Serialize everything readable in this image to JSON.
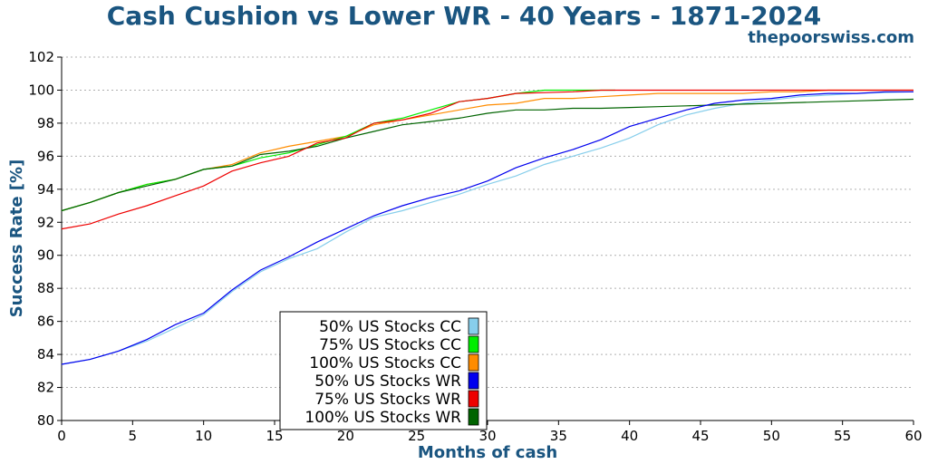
{
  "chart_data": {
    "type": "line",
    "title": "Cash Cushion vs Lower WR - 40 Years - 1871-2024",
    "watermark": "thepoorswiss.com",
    "xlabel": "Months of cash",
    "ylabel": "Success Rate [%]",
    "xlim": [
      0,
      60
    ],
    "ylim": [
      80,
      102
    ],
    "xticks": [
      0,
      5,
      10,
      15,
      20,
      25,
      30,
      35,
      40,
      45,
      50,
      55,
      60
    ],
    "yticks": [
      80,
      82,
      84,
      86,
      88,
      90,
      92,
      94,
      96,
      98,
      100,
      102
    ],
    "grid": "horizontal dotted",
    "legend_position": "lower-center",
    "series": [
      {
        "name": "50% US Stocks CC",
        "color": "#87ceeb",
        "x": [
          0,
          2,
          4,
          6,
          8,
          10,
          12,
          14,
          16,
          18,
          20,
          22,
          24,
          26,
          28,
          30,
          32,
          34,
          36,
          38,
          40,
          42,
          44,
          46,
          48,
          50,
          52,
          54,
          56,
          58,
          60
        ],
        "y": [
          83.4,
          83.7,
          84.2,
          84.8,
          85.6,
          86.4,
          87.8,
          89.0,
          89.8,
          90.4,
          91.4,
          92.3,
          92.7,
          93.2,
          93.7,
          94.3,
          94.8,
          95.5,
          96.0,
          96.5,
          97.1,
          97.9,
          98.5,
          98.9,
          99.2,
          99.4,
          99.6,
          99.7,
          99.8,
          99.85,
          99.9
        ]
      },
      {
        "name": "75% US Stocks CC",
        "color": "#00ee00",
        "x": [
          0,
          2,
          4,
          6,
          8,
          10,
          12,
          14,
          16,
          18,
          20,
          22,
          24,
          26,
          28,
          30,
          32,
          34,
          36,
          38,
          39
        ],
        "y": [
          92.7,
          93.2,
          93.8,
          94.3,
          94.6,
          95.2,
          95.4,
          95.9,
          96.2,
          96.7,
          97.2,
          98.0,
          98.3,
          98.8,
          99.3,
          99.5,
          99.8,
          100.0,
          100.0,
          100.0,
          100.0
        ]
      },
      {
        "name": "100% US Stocks CC",
        "color": "#ff8c00",
        "x": [
          0,
          2,
          4,
          6,
          8,
          10,
          12,
          14,
          16,
          18,
          20,
          22,
          24,
          26,
          28,
          30,
          32,
          34,
          36,
          38,
          40,
          42,
          44,
          46,
          48,
          50,
          52,
          54,
          56,
          58,
          60
        ],
        "y": [
          92.7,
          93.2,
          93.8,
          94.3,
          94.6,
          95.2,
          95.5,
          96.2,
          96.6,
          96.9,
          97.2,
          97.9,
          98.2,
          98.5,
          98.8,
          99.1,
          99.2,
          99.5,
          99.5,
          99.6,
          99.7,
          99.8,
          99.8,
          99.8,
          99.8,
          99.9,
          99.9,
          100.0,
          100.0,
          100.0,
          100.0
        ]
      },
      {
        "name": "50% US Stocks WR",
        "color": "#0000ee",
        "x": [
          0,
          2,
          4,
          6,
          8,
          10,
          12,
          14,
          16,
          18,
          20,
          22,
          24,
          26,
          28,
          30,
          32,
          34,
          36,
          38,
          40,
          42,
          44,
          46,
          48,
          50,
          52,
          54,
          56,
          58,
          60
        ],
        "y": [
          83.4,
          83.7,
          84.2,
          84.9,
          85.8,
          86.5,
          87.9,
          89.1,
          89.9,
          90.8,
          91.6,
          92.4,
          93.0,
          93.5,
          93.9,
          94.5,
          95.3,
          95.9,
          96.4,
          97.0,
          97.8,
          98.3,
          98.8,
          99.2,
          99.4,
          99.5,
          99.7,
          99.8,
          99.8,
          99.9,
          99.9
        ]
      },
      {
        "name": "75% US Stocks WR",
        "color": "#ee0000",
        "x": [
          0,
          2,
          4,
          6,
          8,
          10,
          12,
          14,
          16,
          18,
          20,
          22,
          24,
          26,
          28,
          30,
          32,
          34,
          36,
          38,
          40,
          42,
          44,
          46,
          48,
          50,
          52,
          54,
          56,
          58,
          60
        ],
        "y": [
          91.6,
          91.9,
          92.5,
          93.0,
          93.6,
          94.2,
          95.1,
          95.6,
          96.0,
          96.8,
          97.1,
          98.0,
          98.2,
          98.6,
          99.3,
          99.5,
          99.8,
          99.85,
          99.9,
          100.0,
          100.0,
          100.0,
          100.0,
          100.0,
          100.0,
          100.0,
          100.0,
          100.0,
          100.0,
          100.0,
          100.0
        ]
      },
      {
        "name": "100% US Stocks WR",
        "color": "#006400",
        "x": [
          0,
          2,
          4,
          6,
          8,
          10,
          12,
          14,
          16,
          18,
          20,
          22,
          24,
          26,
          28,
          30,
          32,
          34,
          36,
          38,
          40,
          42,
          44,
          46,
          48,
          50,
          52,
          54,
          56,
          58,
          60
        ],
        "y": [
          92.7,
          93.2,
          93.8,
          94.2,
          94.6,
          95.2,
          95.4,
          96.1,
          96.3,
          96.6,
          97.1,
          97.5,
          97.9,
          98.1,
          98.3,
          98.6,
          98.8,
          98.8,
          98.9,
          98.9,
          98.95,
          99.0,
          99.05,
          99.1,
          99.15,
          99.2,
          99.25,
          99.3,
          99.35,
          99.4,
          99.45
        ]
      }
    ]
  }
}
